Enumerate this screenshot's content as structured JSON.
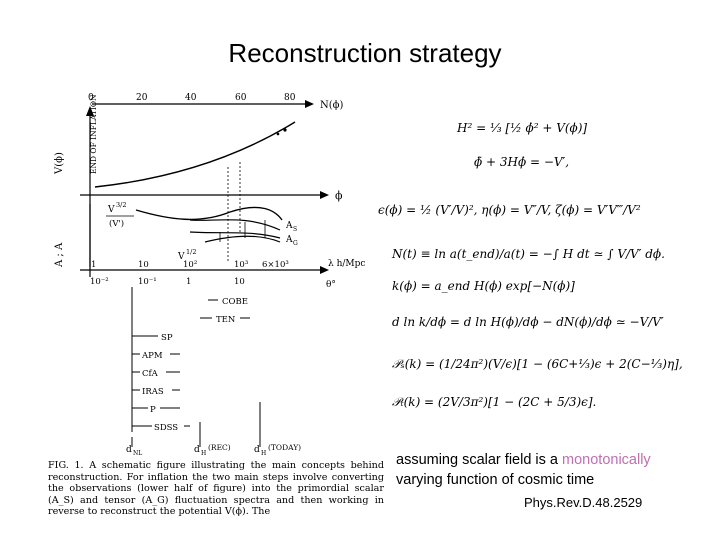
{
  "slide": {
    "title": "Reconstruction strategy"
  },
  "figure": {
    "top_axis_label": "N(ϕ)",
    "top_ticks": [
      "0",
      "20",
      "40",
      "60",
      "80"
    ],
    "end_of_inflation": "END OF INFLATION",
    "v_label": "V(ϕ)",
    "phi_label": "ϕ",
    "ratio_label_num": "V",
    "ratio_label_exp": "3/2",
    "ratio_label_den": "(V')",
    "v_half_label": "V",
    "v_half_exp": "1/2",
    "as_label": "A",
    "as_sub": "S",
    "ag_label": "A",
    "ag_sub": "G",
    "left_axis_label": "A  ; A",
    "lambda_label": "λ h/Mpc",
    "theta_label": "θ°",
    "lambda_ticks": [
      "1",
      "10",
      "10²",
      "10³",
      "6×10³"
    ],
    "theta_ticks": [
      "10⁻²",
      "10⁻¹",
      "1",
      "10"
    ],
    "observations": [
      "COBE",
      "TEN",
      "SP",
      "APM",
      "CfA",
      "IRAS",
      "P",
      "SDSS"
    ],
    "bottom_labels": [
      "d",
      "d",
      "(REC)",
      "d",
      "(TODAY)"
    ],
    "bottom_subs": [
      "NL",
      "H",
      "H"
    ],
    "caption": "FIG. 1.  A schematic figure illustrating the main concepts behind reconstruction. For inflation the two main steps involve converting the observations (lower half of figure) into the primordial scalar (A_S) and tensor (A_G) fluctuation spectra and then working in reverse to reconstruct the potential V(ϕ). The"
  },
  "note": {
    "part1": "assuming scalar field is a ",
    "highlight": "monotonically",
    "part2": " varying function of cosmic time"
  },
  "reference": "Phys.Rev.D.48.2529",
  "colors": {
    "highlight": "#c06fb0"
  }
}
